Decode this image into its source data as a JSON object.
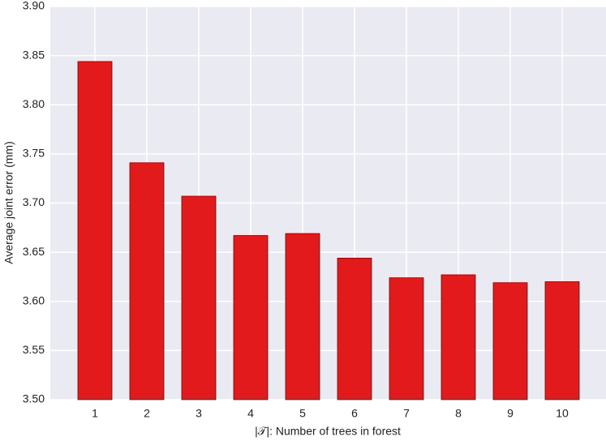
{
  "chart_data": {
    "type": "bar",
    "categories": [
      "1",
      "2",
      "3",
      "4",
      "5",
      "6",
      "7",
      "8",
      "9",
      "10"
    ],
    "values": [
      3.844,
      3.741,
      3.707,
      3.667,
      3.669,
      3.644,
      3.624,
      3.627,
      3.619,
      3.62
    ],
    "color": "#e31a1c",
    "xlabel": "|𝒯|: Number of trees in forest",
    "ylabel": "Average joint error (mm)",
    "ylim": [
      3.5,
      3.9
    ],
    "yticks": [
      {
        "value": 3.5,
        "label": "3.50"
      },
      3.55,
      {
        "value": 3.6,
        "label": "3.60"
      },
      3.65,
      {
        "value": 3.7,
        "label": "3.70"
      },
      3.75,
      {
        "value": 3.8,
        "label": "3.80"
      },
      3.85,
      {
        "value": 3.9,
        "label": "3.90"
      }
    ],
    "grid": true
  }
}
